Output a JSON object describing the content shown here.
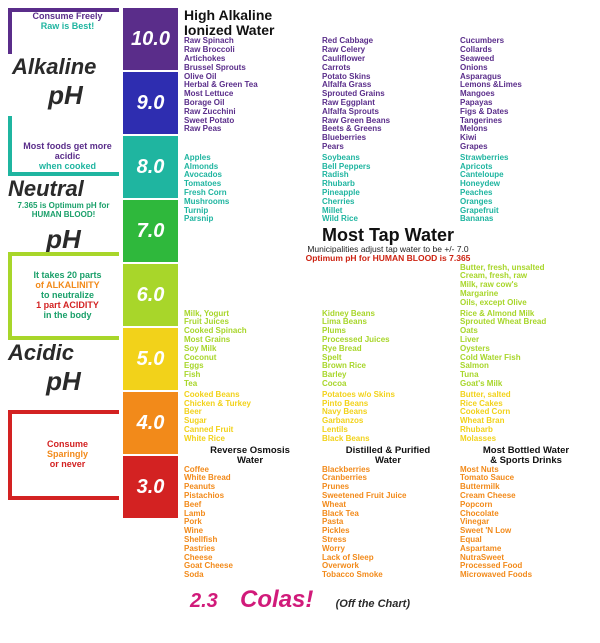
{
  "colors": {
    "purple": "#5a2d8a",
    "indigo": "#2e2db0",
    "blue": "#1f5fd6",
    "teal": "#1fb5a0",
    "green": "#2fb83c",
    "lime": "#a8d62a",
    "yellow": "#f2d21a",
    "orange": "#f28a1a",
    "redorange": "#e8531a",
    "red": "#d32222",
    "magenta": "#d11a7a",
    "textDark": "#2a2a2a",
    "textGreen": "#1aa06a",
    "textRed": "#c21"
  },
  "left": {
    "consume_freely": "Consume\nFreely",
    "raw_best": "Raw is Best!",
    "alkaline": "Alkaline",
    "ph": "pH",
    "cooked_note1": "Most foods\nget more acidic",
    "cooked_note2": "when cooked",
    "neutral": "Neutral",
    "optimum": "7.365 is Optimum pH for HUMAN BLOOD!",
    "alk_note1": "It takes 20 parts",
    "alk_note2": "of ALKALINITY",
    "alk_note3": "to neutralize",
    "alk_note4": "1 part ACIDITY",
    "alk_note5": "in the body",
    "acidic": "Acidic",
    "sparingly1": "Consume",
    "sparingly2": "Sparingly",
    "sparingly3": "or never"
  },
  "scale": [
    "10.0",
    "9.0",
    "8.0",
    "7.0",
    "6.0",
    "5.0",
    "4.0",
    "3.0"
  ],
  "scale_colors": [
    "#5a2d8a",
    "#2e2db0",
    "#1fb5a0",
    "#2fb83c",
    "#a8d62a",
    "#f2d21a",
    "#f28a1a",
    "#d32222"
  ],
  "bottom": {
    "ph": "2.3",
    "colas": "Colas!",
    "off": "(Off the Chart)"
  },
  "levels": [
    {
      "head": "High Alkaline\nIonized Water",
      "color": "#5a2d8a",
      "cols": [
        [
          "Raw Spinach",
          "Raw Broccoli",
          "Artichokes",
          "Brussel Sprouts",
          "Olive Oil",
          "Herbal & Green Tea",
          "Most Lettuce",
          "Borage Oil",
          "Raw Zucchini",
          "Sweet Potato",
          "Raw Peas"
        ],
        [
          "Red Cabbage",
          "Raw Celery",
          "Cauliflower",
          "Carrots",
          "Potato Skins",
          "Alfalfa Grass",
          "Sprouted Grains",
          "Raw Eggplant",
          "Alfalfa Sprouts",
          "Raw Green Beans",
          "Beets & Greens",
          "Blueberries",
          "Pears"
        ],
        [
          "Cucumbers",
          "Collards",
          "Seaweed",
          "Onions",
          "Asparagus",
          "Lemons &Limes",
          "Mangoes",
          "Papayas",
          "Figs & Dates",
          "Tangerines",
          "Melons",
          "Kiwi",
          "Grapes"
        ]
      ]
    },
    {
      "color": "#1fb5a0",
      "cols": [
        [
          "Apples",
          "Almonds",
          "Avocados",
          "Tomatoes",
          "Fresh Corn",
          "Mushrooms",
          "Turnip",
          "Parsnip"
        ],
        [
          "Soybeans",
          "Bell Peppers",
          "Radish",
          "Rhubarb",
          "Pineapple",
          "Cherries",
          "Millet",
          "Wild Rice"
        ],
        [
          "Strawberries",
          "Apricots",
          "Canteloupe",
          "Honeydew",
          "Peaches",
          "Oranges",
          "Grapefruit",
          "Bananas"
        ]
      ]
    },
    {
      "head": "Most Tap Water",
      "sub": "Municipalities adjust tap water to be +/- 7.0",
      "sub2": "Optimum pH for HUMAN BLOOD is 7.365",
      "color": "#2fb83c",
      "cols": [
        [],
        [],
        [
          "Butter, fresh, unsalted",
          "Cream, fresh, raw",
          "Milk, raw cow's",
          "Margarine",
          "Oils, except Olive"
        ]
      ],
      "col3color": "#a8d62a"
    },
    {
      "color": "#a8d62a",
      "cols": [
        [
          "Milk, Yogurt",
          "Fruit Juices",
          "Cooked Spinach",
          "Most Grains",
          "Soy Milk",
          "Coconut",
          "Eggs",
          "Fish",
          "Tea"
        ],
        [
          "Kidney Beans",
          "Lima Beans",
          "Plums",
          "Processed Juices",
          "Rye Bread",
          "Spelt",
          "Brown Rice",
          "Barley",
          "Cocoa"
        ],
        [
          "Rice & Almond Milk",
          "Sprouted Wheat Bread",
          "Oats",
          "Liver",
          "Oysters",
          "Cold Water Fish",
          "Salmon",
          "Tuna",
          "Goat's Milk"
        ]
      ]
    },
    {
      "color": "#f2d21a",
      "cols": [
        [
          "Cooked Beans",
          "Chicken & Turkey",
          "Beer",
          "Sugar",
          "Canned Fruit",
          "White Rice"
        ],
        [
          "Potatoes w/o Skins",
          "Pinto Beans",
          "Navy Beans",
          "Garbanzos",
          "Lentils",
          "Black Beans"
        ],
        [
          "Butter, salted",
          "Rice Cakes",
          "Cooked Corn",
          "Wheat Bran",
          "Rhubarb",
          "Molasses"
        ]
      ]
    },
    {
      "headcols": [
        "Reverse Osmosis\nWater",
        "Distilled & Purified\nWater",
        "Most Bottled Water\n& Sports Drinks"
      ],
      "color": "#f28a1a",
      "cols": [
        [
          "Coffee",
          "White Bread",
          "Peanuts",
          "Pistachios",
          "Beef",
          "Lamb",
          "Pork",
          "Wine",
          "Shellfish",
          "Pastries",
          "Cheese",
          "Goat Cheese",
          "Soda"
        ],
        [
          "Blackberries",
          "Cranberries",
          "Prunes",
          "Sweetened Fruit Juice",
          "Wheat",
          "Black Tea",
          "Pasta",
          "Pickles",
          "Stress",
          "Worry",
          "Lack of Sleep",
          "Overwork",
          "Tobacco Smoke"
        ],
        [
          "Most Nuts",
          "Tomato Sauce",
          "Buttermilk",
          "Cream Cheese",
          "Popcorn",
          "Chocolate",
          "Vinegar",
          "Sweet 'N Low",
          "Equal",
          "Aspartame",
          "NutraSweet",
          "Processed Food",
          "Microwaved Foods"
        ]
      ]
    }
  ]
}
